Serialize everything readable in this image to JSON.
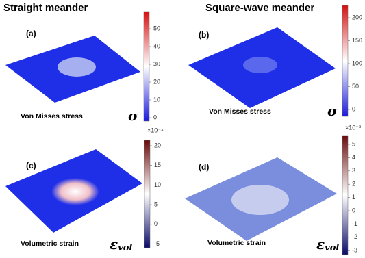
{
  "columns": [
    {
      "title": "Straight meander"
    },
    {
      "title": "Square-wave meander"
    }
  ],
  "panels": [
    {
      "label": "(a)",
      "caption": "Von Misses stress",
      "symbol": "σ",
      "colorbar": {
        "ticks": [
          50,
          40,
          30,
          20,
          10,
          0
        ]
      }
    },
    {
      "label": "(b)",
      "caption": "Von Misses stress",
      "symbol": "σ",
      "colorbar": {
        "ticks": [
          200,
          150,
          100,
          50,
          0
        ]
      }
    },
    {
      "label": "(c)",
      "caption": "Volumetric strain",
      "symbol": "ε",
      "symbol_sub": "vol",
      "colorbar": {
        "multiplier": "×10⁻⁴",
        "ticks": [
          20,
          15,
          10,
          5,
          0,
          -5
        ]
      }
    },
    {
      "label": "(d)",
      "caption": "Volumetric strain",
      "symbol": "ε",
      "symbol_sub": "vol",
      "colorbar": {
        "multiplier": "×10⁻³",
        "ticks": [
          5,
          4,
          3,
          2,
          1,
          0,
          -1,
          -2,
          -3
        ]
      }
    }
  ]
}
